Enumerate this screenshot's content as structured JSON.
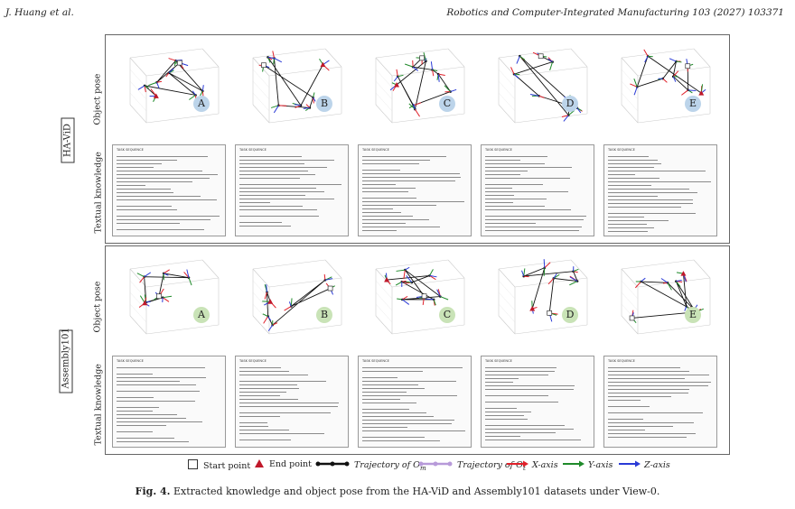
{
  "header": {
    "left": "J. Huang et al.",
    "right": "Robotics and Computer-Integrated Manufacturing 103 (2027) 103371"
  },
  "groups": [
    {
      "dataset": "HA-ViD",
      "row_labels": {
        "pose": "Object pose",
        "text": "Textual knowledge"
      },
      "panels": [
        {
          "letter": "A"
        },
        {
          "letter": "B"
        },
        {
          "letter": "C"
        },
        {
          "letter": "D"
        },
        {
          "letter": "E"
        }
      ]
    },
    {
      "dataset": "Assembly101",
      "row_labels": {
        "pose": "Object pose",
        "text": "Textual knowledge"
      },
      "panels": [
        {
          "letter": "A"
        },
        {
          "letter": "B"
        },
        {
          "letter": "C"
        },
        {
          "letter": "D"
        },
        {
          "letter": "E"
        }
      ]
    }
  ],
  "textbox_headings": [
    "TASK SEQUENCE",
    "TASK SEQUENCE",
    "TASK SEQUENCE",
    "TASK SEQUENCE",
    "TASK SEQUENCE"
  ],
  "legend": {
    "start_point": "Start point",
    "end_point": "End point",
    "trajectory_om": "Trajectory of O",
    "trajectory_om_sub": "m",
    "trajectory_ot": "Trajectory of O",
    "trajectory_ot_sub": "t",
    "x_axis": "X-axis",
    "y_axis": "Y-axis",
    "z_axis": "Z-axis"
  },
  "caption": {
    "label": "Fig. 4.",
    "text": "Extracted knowledge and object pose from the HA-ViD and Assembly101 datasets under View-0."
  },
  "colors": {
    "x_axis": "#e0202a",
    "y_axis": "#1f8a2a",
    "z_axis": "#2a3ad6",
    "trajectory_om": "#111111",
    "trajectory_ot": "#b79ad9",
    "end_point": "#c0182a",
    "badge_group1": "#bcd4ea",
    "badge_group2": "#c9e3b7"
  }
}
